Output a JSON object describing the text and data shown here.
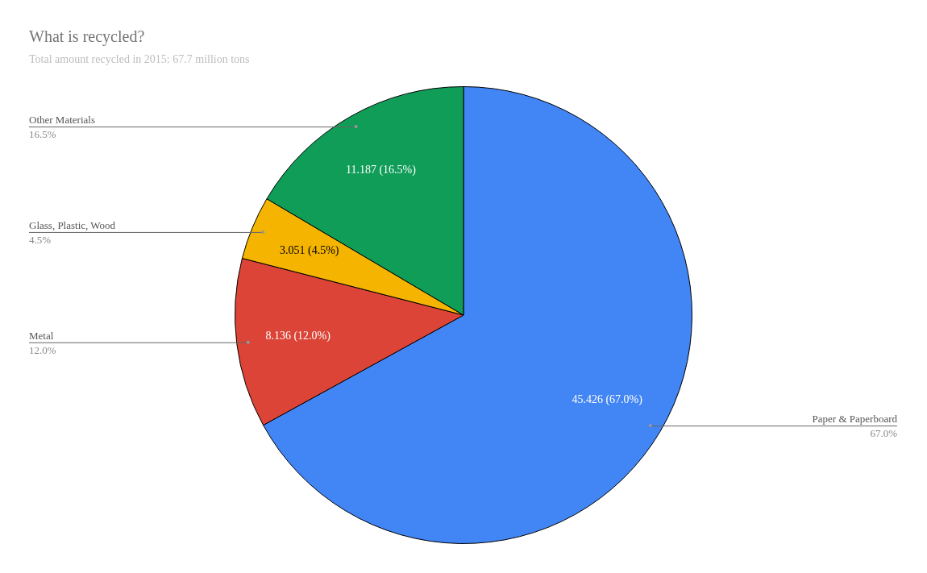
{
  "chart_data": {
    "type": "pie",
    "title": "What is recycled?",
    "subtitle": "Total amount recycled in 2015: 67.7 million tons",
    "categories": [
      "Paper & Paperboard",
      "Metal",
      "Glass, Plastic, Wood",
      "Other Materials"
    ],
    "values": [
      45.426,
      8.136,
      3.051,
      11.187
    ],
    "colors": [
      "#4285f4",
      "#db4437",
      "#f4b400",
      "#0f9d58"
    ],
    "value_labels": [
      "45.426 (67.0%)",
      "8.136 (12.0%)",
      "3.051 (4.5%)",
      "11.187 (16.5%)"
    ],
    "annotations": [
      {
        "text": "67.0%",
        "x": "Paper & Paperboard"
      },
      {
        "text": "12.0%",
        "x": "Metal"
      },
      {
        "text": "4.5%",
        "x": "Glass, Plastic, Wood"
      },
      {
        "text": "16.5%",
        "x": "Other Materials"
      }
    ],
    "legend": false
  }
}
